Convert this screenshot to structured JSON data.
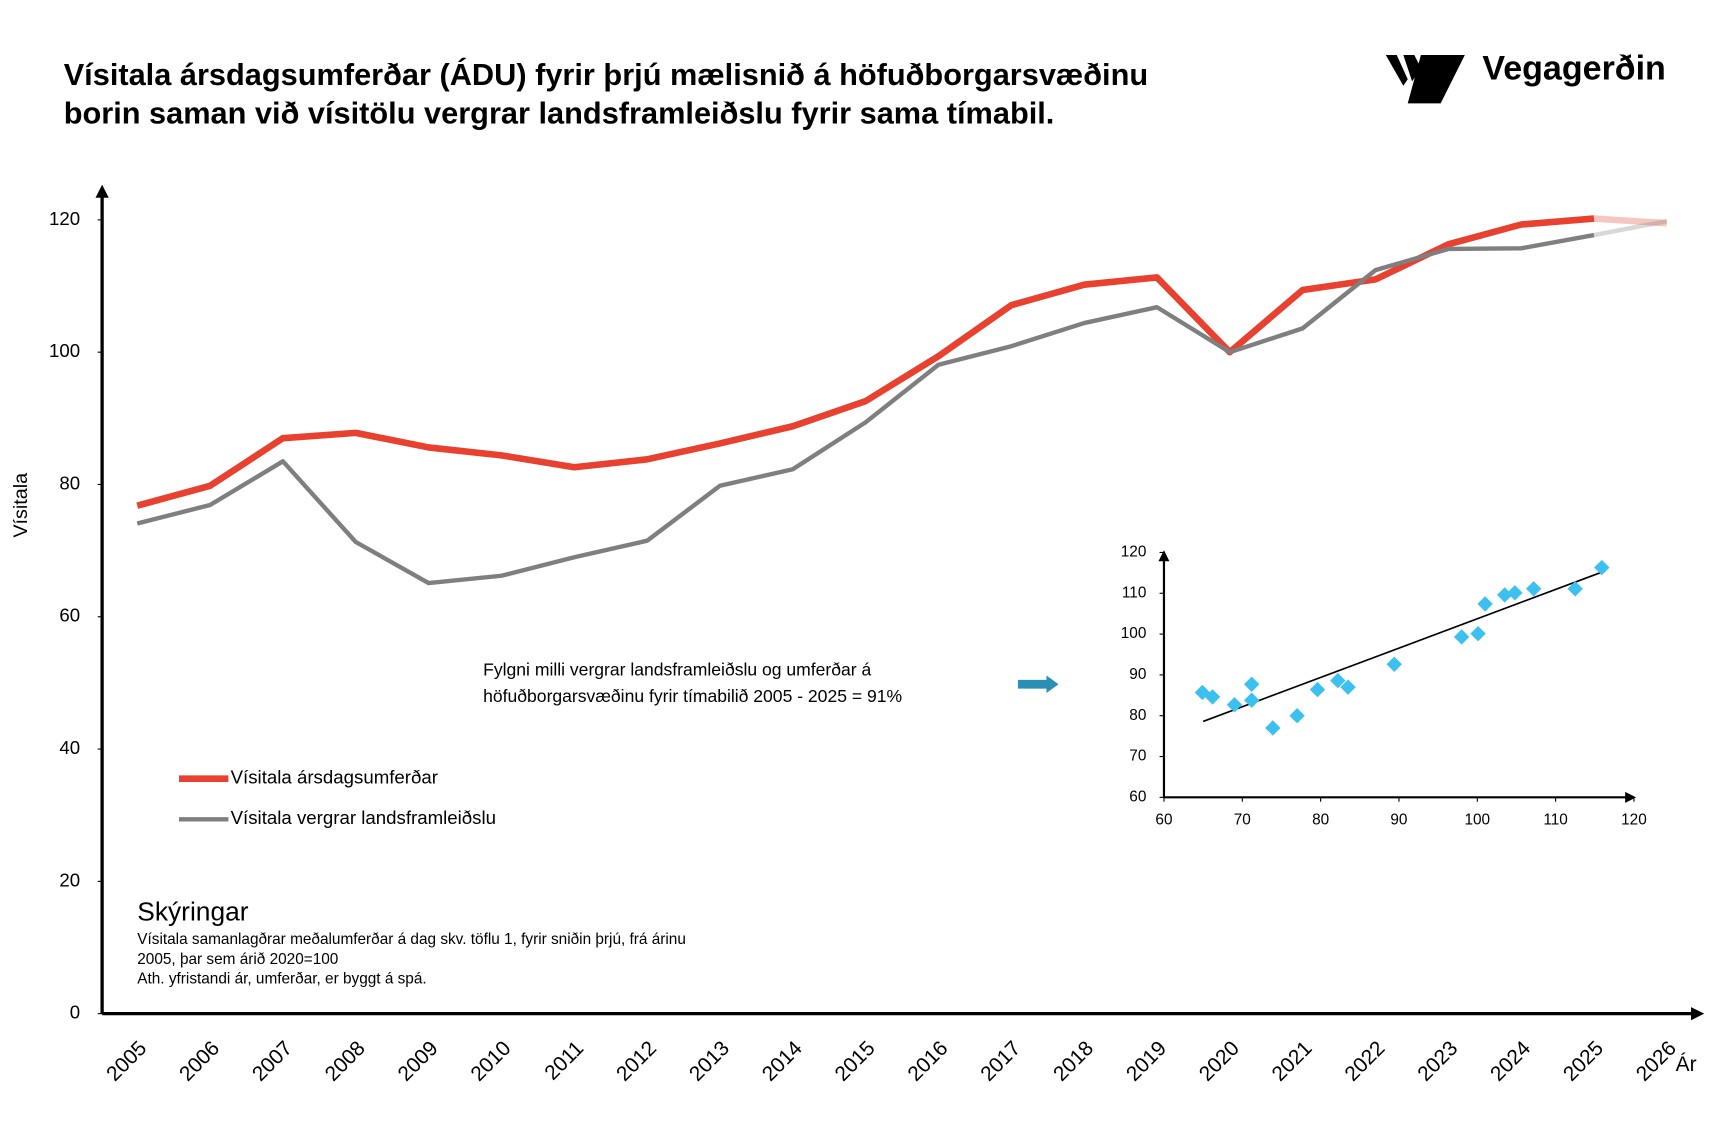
{
  "logo": "Vegagerðin",
  "chart_data": [
    {
      "type": "line",
      "title": [
        "Vísitala ársdagsumferðar (ÁDU) fyrir þrjú mælisnið á höfuðborgarsvæðinu",
        "borin saman við vísitölu vergrar landsframleiðslu fyrir sama tímabil."
      ],
      "ylabel": "Vísitala",
      "xlabel": "Ár",
      "categories": [
        "2005",
        "2006",
        "2007",
        "2008",
        "2009",
        "2010",
        "2011",
        "2012",
        "2013",
        "2014",
        "2015",
        "2016",
        "2017",
        "2018",
        "2019",
        "2020",
        "2021",
        "2022",
        "2023",
        "2024",
        "2025",
        "2026"
      ],
      "series": [
        {
          "name": "Vísitala ársdagsumferðar",
          "color": "#e8412f",
          "values": [
            76.8,
            79.8,
            87,
            87.8,
            85.6,
            84.4,
            82.6,
            83.8,
            86.2,
            88.8,
            92.6,
            99.4,
            107.1,
            110.2,
            111.3,
            100,
            109.4,
            111,
            116.3,
            119.3,
            120.2,
            119.5
          ]
        },
        {
          "name": "Vísitala vergrar landsframleiðslu",
          "color": "#7f7f7f",
          "values": [
            74.1,
            76.9,
            83.5,
            71.3,
            65.1,
            66.2,
            69,
            71.5,
            79.8,
            82.3,
            89.4,
            98.1,
            100.9,
            104.4,
            106.8,
            100,
            103.6,
            112.4,
            115.6,
            115.7,
            117.7,
            119.8
          ]
        }
      ],
      "ylim": [
        0,
        125
      ],
      "yticks": [
        0,
        20,
        40,
        60,
        80,
        100,
        120
      ],
      "annotation": [
        "Fylgni milli vergrar landsframleiðslu og umferðar á",
        "höfuðborgarsvæðinu fyrir tímabilið 2005 - 2025 = 91%"
      ],
      "notes": {
        "heading": "Skýringar",
        "lines": [
          "Vísitala samanlagðrar meðalumferðar á dag  skv. töflu 1, fyrir sniðin  þrjú, frá árinu",
          "2005, þar sem árið 2020=100",
          "Ath. yfristandi ár, umferðar, er byggt á spá."
        ]
      }
    },
    {
      "type": "scatter",
      "color": "#3cc0ef",
      "x": [
        64.9,
        66.2,
        69.0,
        71.2,
        71.2,
        73.9,
        77.0,
        79.6,
        82.2,
        83.5,
        89.4,
        98.0,
        100.1,
        101.0,
        103.5,
        104.8,
        107.2,
        112.5,
        115.9
      ],
      "values": [
        85.7,
        84.6,
        82.7,
        83.8,
        87.7,
        77.0,
        80.0,
        86.4,
        88.6,
        87.0,
        92.6,
        99.3,
        100.1,
        107.4,
        109.6,
        110.1,
        111.1,
        111.1,
        116.3
      ],
      "trendline": {
        "x": [
          65.0,
          115.8
        ],
        "values": [
          78.6,
          115.1
        ],
        "color": "#000000"
      },
      "xlim": [
        60,
        120
      ],
      "xticks": [
        60,
        70,
        80,
        90,
        100,
        110,
        120
      ],
      "ylim": [
        60,
        120
      ],
      "yticks": [
        60,
        70,
        80,
        90,
        100,
        110,
        120
      ]
    }
  ]
}
